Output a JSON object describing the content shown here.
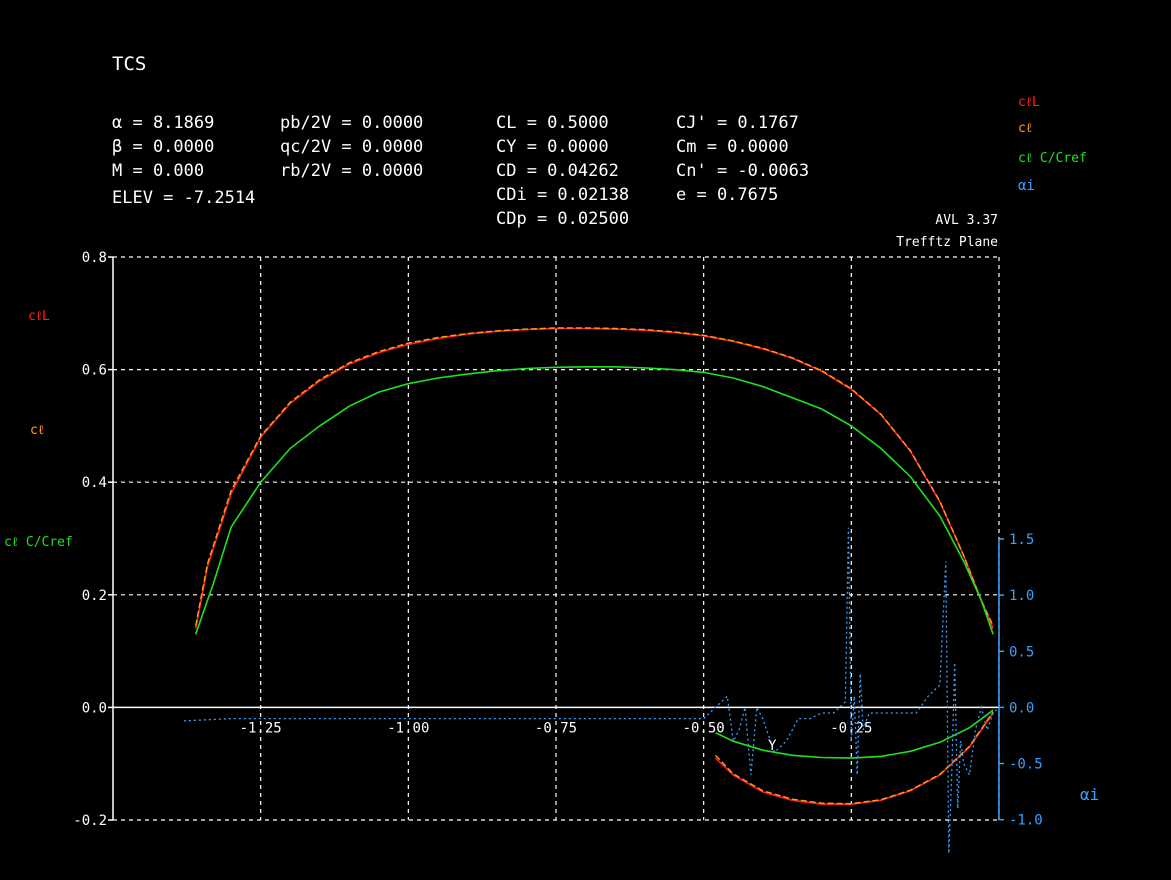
{
  "header": {
    "title": "TCS",
    "col1": [
      "α = 8.1869",
      "β = 0.0000",
      "M = 0.000",
      "ELEV = -7.2514"
    ],
    "col2": [
      "pb/2V = 0.0000",
      "qc/2V = 0.0000",
      "rb/2V = 0.0000"
    ],
    "col3": [
      "CL = 0.5000",
      "CY = 0.0000",
      "CD = 0.04262",
      "CDi = 0.02138",
      "CDp = 0.02500"
    ],
    "col4": [
      "CJ' = 0.1767",
      "Cm = 0.0000",
      "Cn' = -0.0063",
      "e = 0.7675"
    ],
    "version": "AVL 3.37",
    "plane": "Trefftz Plane"
  },
  "legend": {
    "items": [
      {
        "label": "cℓL",
        "color": "#ff2020"
      },
      {
        "label": "cℓ",
        "color": "#ff9a20"
      },
      {
        "label": "cℓ C/Cref",
        "color": "#20e020"
      },
      {
        "label": "αi",
        "color": "#3aa0ff"
      }
    ]
  },
  "left_labels": [
    {
      "label": "cℓL",
      "color": "#ff2020"
    },
    {
      "label": "cℓ",
      "color": "#ff9a20"
    },
    {
      "label": "cℓ C/Cref",
      "color": "#20e020"
    }
  ],
  "right_axis_label": "αi",
  "x_axis_label": "Y",
  "colors": {
    "cl_local": "#ff2020",
    "cl": "#ff9a20",
    "cl_c_cref": "#20e020",
    "alpha_i": "#3aa0ff",
    "grid": "#ffffff",
    "bg": "#000000"
  },
  "chart_data": {
    "type": "line",
    "x_ticks": [
      -1.25,
      -1.0,
      -0.75,
      -0.5,
      -0.25
    ],
    "x_tick_labels": [
      "-1.25",
      "-1.00",
      "-0.75",
      "-0.50",
      "-0.25"
    ],
    "xlim": [
      -1.5,
      0.0
    ],
    "y_ticks": [
      -0.2,
      0.0,
      0.2,
      0.4,
      0.6,
      0.8
    ],
    "y_tick_labels": [
      "-0.2",
      "0.0",
      "0.2",
      "0.4",
      "0.6",
      "0.8"
    ],
    "ylim": [
      -0.2,
      0.8
    ],
    "y2_ticks": [
      -1.0,
      -0.5,
      0.0,
      0.5,
      1.0,
      1.5
    ],
    "y2_tick_labels": [
      "-1.0",
      "-0.5",
      "0.0",
      "0.5",
      "1.0",
      "1.5"
    ],
    "y2lim": [
      -1.0,
      1.5
    ],
    "grid": true,
    "series": [
      {
        "name": "cℓL",
        "axis": "left",
        "x": [
          -1.36,
          -1.34,
          -1.3,
          -1.25,
          -1.2,
          -1.15,
          -1.1,
          -1.05,
          -1.0,
          -0.95,
          -0.9,
          -0.85,
          -0.8,
          -0.75,
          -0.7,
          -0.65,
          -0.6,
          -0.55,
          -0.5,
          -0.45,
          -0.4,
          -0.35,
          -0.3,
          -0.25,
          -0.2,
          -0.15,
          -0.1,
          -0.06,
          -0.03,
          -0.01
        ],
        "y": [
          0.14,
          0.25,
          0.38,
          0.48,
          0.54,
          0.58,
          0.61,
          0.63,
          0.645,
          0.655,
          0.663,
          0.668,
          0.671,
          0.673,
          0.673,
          0.672,
          0.67,
          0.666,
          0.66,
          0.65,
          0.637,
          0.62,
          0.597,
          0.565,
          0.52,
          0.455,
          0.365,
          0.27,
          0.19,
          0.14
        ]
      },
      {
        "name": "cℓL lower",
        "axis": "left",
        "x": [
          -0.48,
          -0.45,
          -0.4,
          -0.35,
          -0.3,
          -0.25,
          -0.2,
          -0.15,
          -0.1,
          -0.05,
          -0.01
        ],
        "y": [
          -0.09,
          -0.12,
          -0.15,
          -0.165,
          -0.172,
          -0.172,
          -0.165,
          -0.148,
          -0.12,
          -0.07,
          -0.01
        ]
      },
      {
        "name": "cℓ",
        "axis": "left",
        "x": [
          -1.36,
          -1.34,
          -1.3,
          -1.25,
          -1.2,
          -1.15,
          -1.1,
          -1.05,
          -1.0,
          -0.95,
          -0.9,
          -0.85,
          -0.8,
          -0.75,
          -0.7,
          -0.65,
          -0.6,
          -0.55,
          -0.5,
          -0.45,
          -0.4,
          -0.35,
          -0.3,
          -0.25,
          -0.2,
          -0.15,
          -0.1,
          -0.06,
          -0.03,
          -0.01
        ],
        "y": [
          0.145,
          0.255,
          0.385,
          0.482,
          0.542,
          0.582,
          0.612,
          0.632,
          0.647,
          0.657,
          0.664,
          0.669,
          0.672,
          0.674,
          0.674,
          0.673,
          0.671,
          0.667,
          0.661,
          0.651,
          0.638,
          0.621,
          0.598,
          0.566,
          0.521,
          0.456,
          0.366,
          0.27,
          0.19,
          0.145
        ]
      },
      {
        "name": "cℓ lower",
        "axis": "left",
        "x": [
          -0.48,
          -0.45,
          -0.4,
          -0.35,
          -0.3,
          -0.25,
          -0.2,
          -0.15,
          -0.1,
          -0.05,
          -0.01
        ],
        "y": [
          -0.085,
          -0.118,
          -0.148,
          -0.163,
          -0.17,
          -0.171,
          -0.164,
          -0.147,
          -0.119,
          -0.069,
          -0.008
        ]
      },
      {
        "name": "cℓ C/Cref",
        "axis": "left",
        "x": [
          -1.36,
          -1.33,
          -1.3,
          -1.25,
          -1.2,
          -1.15,
          -1.1,
          -1.05,
          -1.0,
          -0.95,
          -0.9,
          -0.85,
          -0.8,
          -0.75,
          -0.7,
          -0.65,
          -0.6,
          -0.55,
          -0.5,
          -0.45,
          -0.4,
          -0.35,
          -0.3,
          -0.25,
          -0.2,
          -0.15,
          -0.1,
          -0.06,
          -0.03,
          -0.01
        ],
        "y": [
          0.13,
          0.22,
          0.32,
          0.4,
          0.46,
          0.5,
          0.535,
          0.56,
          0.575,
          0.585,
          0.592,
          0.598,
          0.602,
          0.604,
          0.605,
          0.605,
          0.603,
          0.6,
          0.595,
          0.585,
          0.57,
          0.55,
          0.53,
          0.5,
          0.46,
          0.41,
          0.34,
          0.26,
          0.19,
          0.13
        ]
      },
      {
        "name": "cℓ C/Cref lower",
        "axis": "left",
        "x": [
          -0.48,
          -0.45,
          -0.4,
          -0.35,
          -0.3,
          -0.25,
          -0.2,
          -0.15,
          -0.1,
          -0.05,
          -0.01
        ],
        "y": [
          -0.045,
          -0.06,
          -0.076,
          -0.085,
          -0.089,
          -0.09,
          -0.087,
          -0.078,
          -0.062,
          -0.036,
          -0.005
        ]
      },
      {
        "name": "αi",
        "axis": "right",
        "x": [
          -1.38,
          -1.3,
          -1.2,
          -1.1,
          -1.0,
          -0.9,
          -0.8,
          -0.7,
          -0.6,
          -0.52,
          -0.5,
          -0.48,
          -0.46,
          -0.45,
          -0.44,
          -0.43,
          -0.42,
          -0.41,
          -0.4,
          -0.38,
          -0.36,
          -0.34,
          -0.32,
          -0.3,
          -0.28,
          -0.26,
          -0.255,
          -0.25,
          -0.245,
          -0.24,
          -0.235,
          -0.23,
          -0.22,
          -0.2,
          -0.18,
          -0.16,
          -0.14,
          -0.12,
          -0.1,
          -0.09,
          -0.085,
          -0.08,
          -0.075,
          -0.07,
          -0.065,
          -0.06,
          -0.05,
          -0.04,
          -0.03,
          -0.02,
          -0.01,
          0.0
        ],
        "y": [
          -0.12,
          -0.1,
          -0.1,
          -0.1,
          -0.1,
          -0.1,
          -0.1,
          -0.1,
          -0.1,
          -0.1,
          -0.1,
          0.0,
          0.1,
          -0.3,
          -0.2,
          0.0,
          -0.6,
          0.0,
          -0.1,
          -0.4,
          -0.3,
          -0.1,
          -0.1,
          -0.05,
          -0.05,
          0.05,
          1.6,
          -0.3,
          0.1,
          -0.6,
          0.3,
          -0.2,
          -0.05,
          -0.05,
          -0.05,
          -0.05,
          -0.05,
          0.1,
          0.2,
          1.3,
          -1.3,
          -0.6,
          0.4,
          -0.9,
          -0.3,
          -0.5,
          -0.6,
          -0.2,
          0.0,
          -0.2,
          -0.05,
          0.0
        ]
      }
    ]
  }
}
